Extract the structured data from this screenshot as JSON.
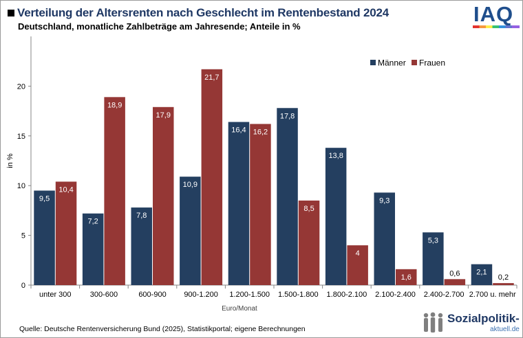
{
  "header": {
    "title": "Verteilung der Altersrenten nach Geschlecht im Rentenbestand 2024",
    "subtitle": "Deutschland, monatliche Zahlbeträge am Jahresende; Anteile in %"
  },
  "logo": {
    "text": "IAQ"
  },
  "footer": {
    "source": "Quelle: Deutsche Rentenversicherung  Bund (2025), Statistikportal; eigene Berechnungen",
    "brand_main": "Sozialpolitik-",
    "brand_sub": "aktuell.de"
  },
  "colors": {
    "maenner": "#243f60",
    "frauen": "#953735",
    "title": "#1f3864"
  },
  "chart_data": {
    "type": "bar",
    "title": "Verteilung der Altersrenten nach Geschlecht im Rentenbestand 2024",
    "xlabel": "Euro/Monat",
    "ylabel": "in %",
    "ylim": [
      0,
      25
    ],
    "yticks": [
      0,
      5,
      10,
      15,
      20
    ],
    "grid": false,
    "legend": "top-right",
    "categories": [
      "unter 300",
      "300-600",
      "600-900",
      "900-1.200",
      "1.200-1.500",
      "1.500-1.800",
      "1.800-2.100",
      "2.100-2.400",
      "2.400-2.700",
      "2.700 u. mehr"
    ],
    "series": [
      {
        "name": "Männer",
        "values": [
          9.5,
          7.2,
          7.8,
          10.9,
          16.4,
          17.8,
          13.8,
          9.3,
          5.3,
          2.1
        ],
        "labels": [
          "9,5",
          "7,2",
          "7,8",
          "10,9",
          "16,4",
          "17,8",
          "13,8",
          "9,3",
          "5,3",
          "2,1"
        ]
      },
      {
        "name": "Frauen",
        "values": [
          10.4,
          18.9,
          17.9,
          21.7,
          16.2,
          8.5,
          4.0,
          1.6,
          0.6,
          0.2
        ],
        "labels": [
          "10,4",
          "18,9",
          "17,9",
          "21,7",
          "16,2",
          "8,5",
          "4",
          "1,6",
          "0,6",
          "0,2"
        ]
      }
    ]
  }
}
